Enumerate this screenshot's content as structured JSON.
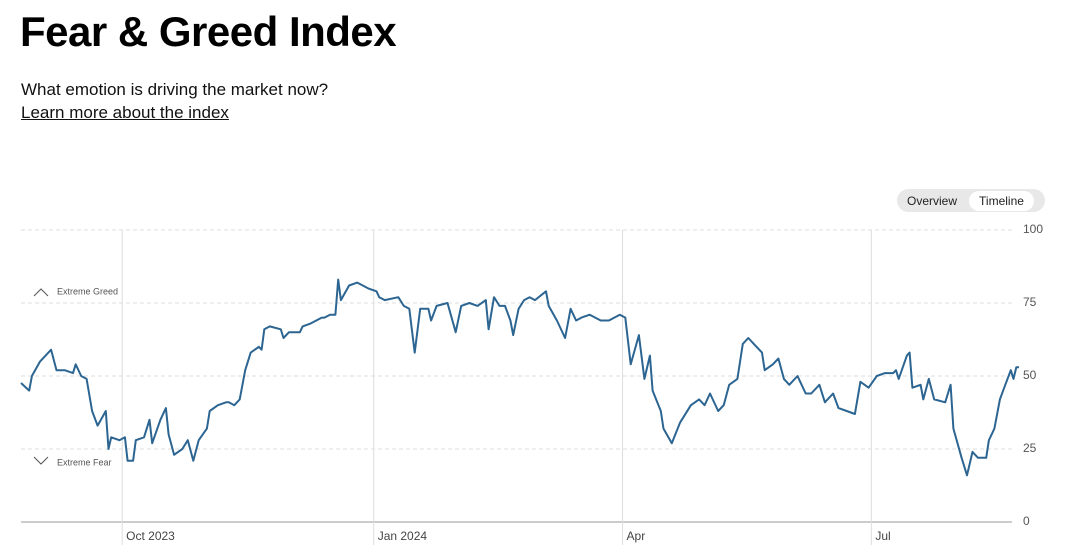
{
  "header": {
    "title": "Fear & Greed Index",
    "subtitle": "What emotion is driving the market now?",
    "link": "Learn more about the index"
  },
  "tabs": [
    "Overview",
    "Timeline"
  ],
  "chart_data": {
    "type": "line",
    "annotations": [
      "Extreme Greed",
      "Extreme Fear"
    ],
    "x": [
      0,
      3,
      4,
      7,
      11,
      13,
      16,
      19,
      20,
      22,
      24,
      26,
      28,
      31,
      32,
      33,
      36,
      38,
      39,
      41,
      42,
      45,
      47,
      48,
      51,
      53,
      54,
      56,
      59,
      61,
      63,
      65,
      68,
      69,
      72,
      75,
      76,
      78,
      80,
      82,
      84,
      87,
      88,
      89,
      91,
      95,
      96,
      98,
      102,
      103,
      106,
      110,
      111,
      113,
      115,
      116,
      117,
      120,
      123,
      127,
      130,
      131,
      133,
      138,
      140,
      142,
      144,
      146,
      149,
      150,
      152,
      156,
      159,
      161,
      164,
      167,
      170,
      171,
      173,
      175,
      177,
      179,
      180,
      182,
      184,
      186,
      188,
      192,
      193,
      196,
      199,
      201,
      203,
      205,
      208,
      212,
      214,
      215,
      219,
      221,
      223,
      226,
      228,
      230,
      231,
      234,
      235,
      238,
      241,
      245,
      248,
      250,
      252,
      255,
      257,
      259,
      262,
      264,
      266,
      268,
      271,
      272,
      275,
      277,
      279,
      281,
      284,
      287,
      289,
      292,
      294,
      297,
      299,
      302,
      305,
      307,
      310,
      313,
      316,
      319,
      320,
      321,
      324,
      325,
      326,
      329,
      330,
      332,
      334,
      338,
      340,
      341,
      344,
      346,
      348,
      350,
      353,
      354,
      356,
      358,
      360,
      362,
      363,
      364,
      365
    ],
    "series": [
      {
        "name": "Fear & Greed",
        "color": "#2c6591",
        "values": [
          47.6,
          45,
          50,
          55,
          59,
          52,
          52,
          51,
          54,
          50,
          49,
          38,
          33,
          38,
          25,
          29,
          28,
          29,
          21,
          21,
          28,
          29,
          35,
          27,
          35,
          39,
          30,
          23,
          25,
          28,
          21,
          28,
          32,
          38,
          40,
          41,
          41,
          40,
          42,
          52,
          58,
          60,
          59,
          66,
          67,
          66,
          63,
          65,
          65,
          67,
          68,
          70,
          70,
          71,
          71,
          83,
          76,
          81,
          82,
          80,
          79,
          77,
          76,
          77,
          74,
          73,
          58,
          73,
          73,
          69,
          74,
          75,
          65,
          74,
          75,
          74,
          76,
          66,
          77,
          74,
          74,
          69,
          64,
          73,
          76,
          77,
          76,
          79,
          74,
          69,
          63,
          73,
          69,
          70,
          71,
          69,
          69,
          69,
          71,
          70,
          54,
          64,
          49,
          57,
          45,
          38,
          32,
          27,
          34,
          40,
          42,
          40,
          44,
          38,
          40,
          47,
          49,
          61,
          63,
          61,
          58,
          52,
          54,
          56,
          49,
          47,
          50,
          44,
          44,
          47,
          41,
          44,
          39,
          38,
          37,
          48,
          46,
          50,
          51,
          51,
          52,
          49,
          57,
          58,
          46,
          47,
          42,
          49,
          42,
          41,
          47,
          32,
          22,
          16,
          24,
          22,
          22,
          28,
          32,
          42,
          47,
          52,
          49,
          53,
          53
        ]
      }
    ],
    "xlim": [
      0,
      365
    ],
    "xticks": [
      {
        "value": 37,
        "label": "Oct 2023"
      },
      {
        "value": 129,
        "label": "Jan 2024"
      },
      {
        "value": 220,
        "label": "Apr"
      },
      {
        "value": 311,
        "label": "Jul"
      }
    ],
    "ylim": [
      0,
      100
    ],
    "yticks": [
      0,
      25,
      50,
      75,
      100
    ],
    "grid": true
  }
}
